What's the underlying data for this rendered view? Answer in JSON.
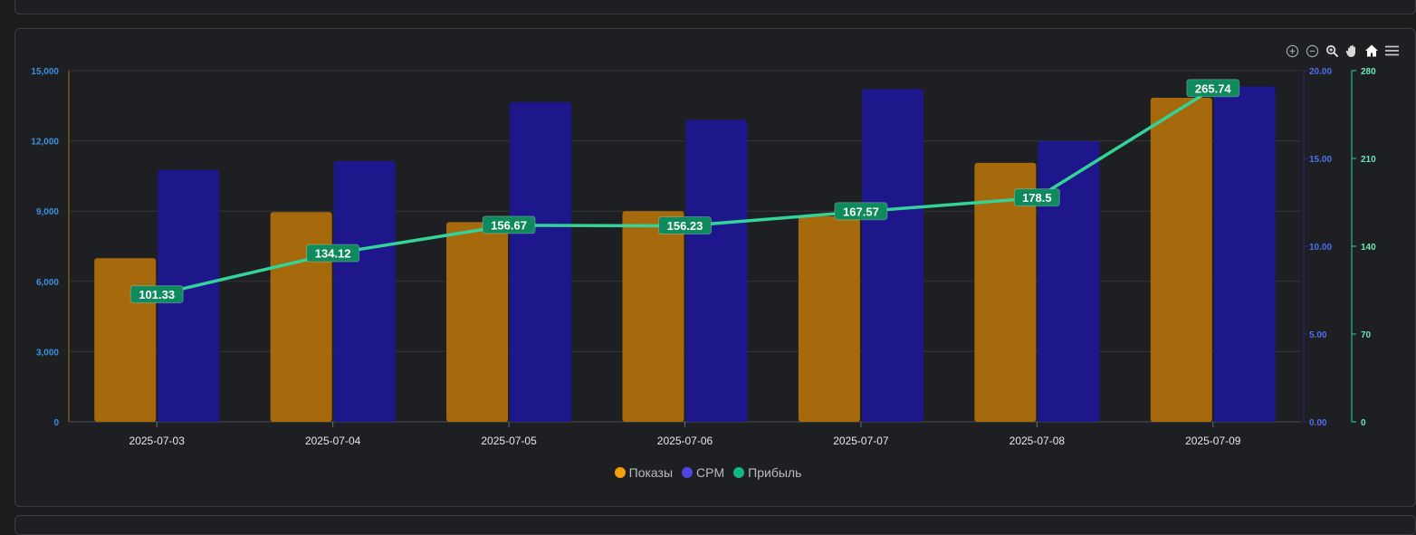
{
  "toolbar": {
    "icons": [
      "zoom-in-icon",
      "zoom-out-icon",
      "zoom-selection-icon",
      "pan-icon",
      "home-icon",
      "menu-icon"
    ]
  },
  "colors": {
    "impressions": "#a66a0c",
    "impressions_legend": "#f59e0b",
    "cpm": "#1e178c",
    "cpm_legend": "#4f46e5",
    "profit_line": "#34d399",
    "profit_label_bg": "#0e8a5c",
    "profit_legend": "#10b981",
    "left_axis": "#3b8fe0",
    "left_axis_line": "#9c7a10",
    "cpm_axis": "#4f6ef0",
    "cpm_axis_line": "#2a2a7a",
    "profit_axis": "#6ee7b7",
    "profit_axis_line": "#34d399",
    "grid": "#34363a"
  },
  "chart_data": {
    "type": "bar",
    "categories": [
      "2025-07-03",
      "2025-07-04",
      "2025-07-05",
      "2025-07-06",
      "2025-07-07",
      "2025-07-08",
      "2025-07-09"
    ],
    "series": [
      {
        "name": "Показы",
        "type": "bar",
        "axis": "left",
        "values": [
          6990,
          8960,
          8530,
          9000,
          8780,
          11060,
          13840
        ]
      },
      {
        "name": "CPM",
        "type": "bar",
        "axis": "right1",
        "values": [
          14.35,
          14.85,
          18.2,
          17.2,
          18.95,
          16.0,
          19.1
        ]
      },
      {
        "name": "Прибыль",
        "type": "line",
        "axis": "right2",
        "values": [
          101.33,
          134.12,
          156.67,
          156.23,
          167.57,
          178.5,
          265.74
        ],
        "data_labels": [
          "101.33",
          "134.12",
          "156.67",
          "156.23",
          "167.57",
          "178.5",
          "265.74"
        ]
      }
    ],
    "axes": {
      "left": {
        "ticks": [
          "0",
          "3,000",
          "6,000",
          "9,000",
          "12,000",
          "15,000"
        ],
        "ylim": [
          0,
          15000
        ]
      },
      "right1": {
        "ticks": [
          "0.00",
          "5.00",
          "10.00",
          "15.00",
          "20.00"
        ],
        "ylim": [
          0,
          20
        ]
      },
      "right2": {
        "ticks": [
          "0",
          "70",
          "140",
          "210",
          "280"
        ],
        "ylim": [
          0,
          280
        ]
      }
    },
    "grid": true,
    "legend_position": "bottom-center"
  }
}
